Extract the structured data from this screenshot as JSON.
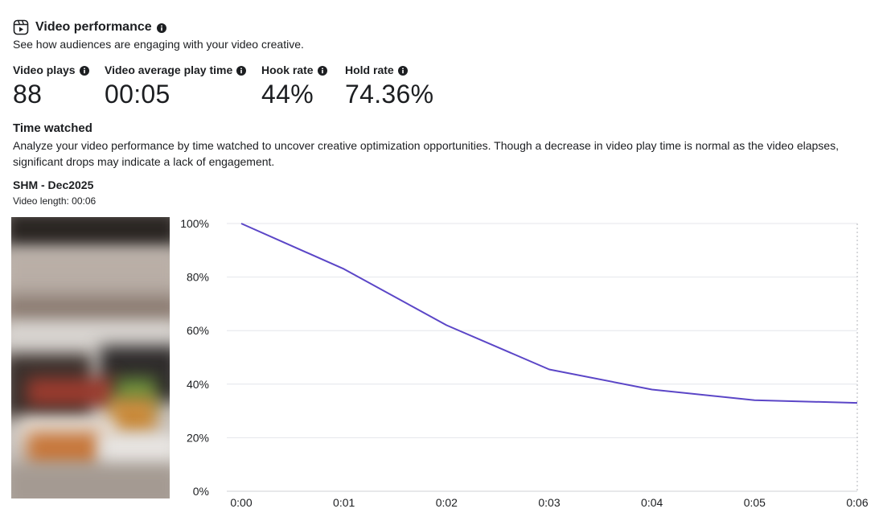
{
  "header": {
    "title": "Video performance",
    "subtitle": "See how audiences are engaging with your video creative.",
    "icon": "video-reel-icon"
  },
  "metrics": [
    {
      "label": "Video plays",
      "value": "88"
    },
    {
      "label": "Video average play time",
      "value": "00:05"
    },
    {
      "label": "Hook rate",
      "value": "44%"
    },
    {
      "label": "Hold rate",
      "value": "74.36%"
    }
  ],
  "time_watched": {
    "title": "Time watched",
    "description": "Analyze your video performance by time watched to uncover creative optimization opportunities. Though a decrease in video play time is normal as the video elapses, significant drops may indicate a lack of engagement."
  },
  "video": {
    "name": "SHM - Dec2025",
    "length_label": "Video length: 00:06"
  },
  "chart_data": {
    "type": "line",
    "x": [
      "0:00",
      "0:01",
      "0:02",
      "0:03",
      "0:04",
      "0:05",
      "0:06"
    ],
    "y_ticks": [
      "0%",
      "20%",
      "40%",
      "60%",
      "80%",
      "100%"
    ],
    "ylim": [
      0,
      100
    ],
    "series": [
      {
        "values": [
          100,
          83,
          62,
          45.5,
          38,
          34,
          33
        ],
        "color": "#5b46c7"
      }
    ],
    "grid": true
  }
}
